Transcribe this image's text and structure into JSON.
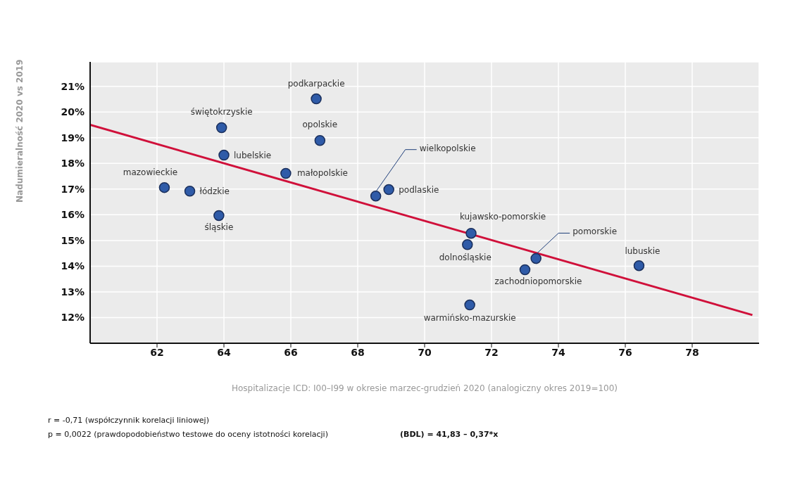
{
  "chart_data": {
    "type": "scatter",
    "xlabel": "Hospitalizacje ICD: I00–I99 w okresie marzec-grudzień 2020 (analogiczny okres 2019=100)",
    "ylabel": "Nadumieralność 2020 vs 2019",
    "xlim": [
      60,
      80
    ],
    "xticks": [
      62,
      64,
      66,
      68,
      70,
      72,
      74,
      76,
      78
    ],
    "ylim": [
      11,
      21.95
    ],
    "yticks": [
      {
        "value": 12,
        "label": "12%"
      },
      {
        "value": 13,
        "label": "13%"
      },
      {
        "value": 14,
        "label": "14%"
      },
      {
        "value": 15,
        "label": "15%"
      },
      {
        "value": 16,
        "label": "16%"
      },
      {
        "value": 17,
        "label": "17%"
      },
      {
        "value": 18,
        "label": "18%"
      },
      {
        "value": 19,
        "label": "19%"
      },
      {
        "value": 20,
        "label": "20%"
      },
      {
        "value": 21,
        "label": "21%"
      }
    ],
    "grid": true,
    "series": [
      {
        "type": "scatter",
        "color": "#2f5ba8",
        "x": [
          66.76,
          63.93,
          66.87,
          64.0,
          65.85,
          62.22,
          62.98,
          63.85,
          68.54,
          68.93,
          71.39,
          71.28,
          73.33,
          73.0,
          76.41,
          71.35
        ],
        "marker": "circle",
        "values": [
          20.51,
          19.39,
          18.89,
          18.32,
          17.61,
          17.06,
          16.92,
          15.97,
          16.73,
          16.98,
          15.28,
          14.84,
          14.3,
          13.86,
          14.02,
          12.49
        ]
      },
      {
        "type": "line",
        "color": "#d0103a",
        "x": [
          60,
          79.8
        ],
        "values": [
          19.5,
          12.1
        ]
      }
    ],
    "annotations": [
      {
        "text": "podkarpackie",
        "x": 66.76,
        "y": 20.51
      },
      {
        "text": "świętokrzyskie",
        "x": 63.93,
        "y": 19.39
      },
      {
        "text": "opolskie",
        "x": 66.87,
        "y": 18.89
      },
      {
        "text": "lubelskie",
        "x": 64.0,
        "y": 18.32
      },
      {
        "text": "małopolskie",
        "x": 65.85,
        "y": 17.61
      },
      {
        "text": "mazowieckie",
        "x": 62.22,
        "y": 17.06
      },
      {
        "text": "łódzkie",
        "x": 62.98,
        "y": 16.92
      },
      {
        "text": "śląskie",
        "x": 63.85,
        "y": 15.97
      },
      {
        "text": "wielkopolskie",
        "x": 68.54,
        "y": 16.73
      },
      {
        "text": "podlaskie",
        "x": 68.93,
        "y": 16.98
      },
      {
        "text": "kujawsko-pomorskie",
        "x": 71.39,
        "y": 15.28
      },
      {
        "text": "dolnośląskie",
        "x": 71.28,
        "y": 14.84
      },
      {
        "text": "pomorskie",
        "x": 73.33,
        "y": 14.3
      },
      {
        "text": "zachodniopomorskie",
        "x": 73.0,
        "y": 13.86
      },
      {
        "text": "lubuskie",
        "x": 76.41,
        "y": 14.02
      },
      {
        "text": "warmińsko-mazurskie",
        "x": 71.35,
        "y": 12.49
      },
      "r = -0,71 (współczynnik korelacji liniowej)",
      "p = 0,0022 (prawdopodobieństwo testowe do oceny istotności korelacji)",
      "(BDL) = 41,83 – 0,37*x"
    ]
  }
}
